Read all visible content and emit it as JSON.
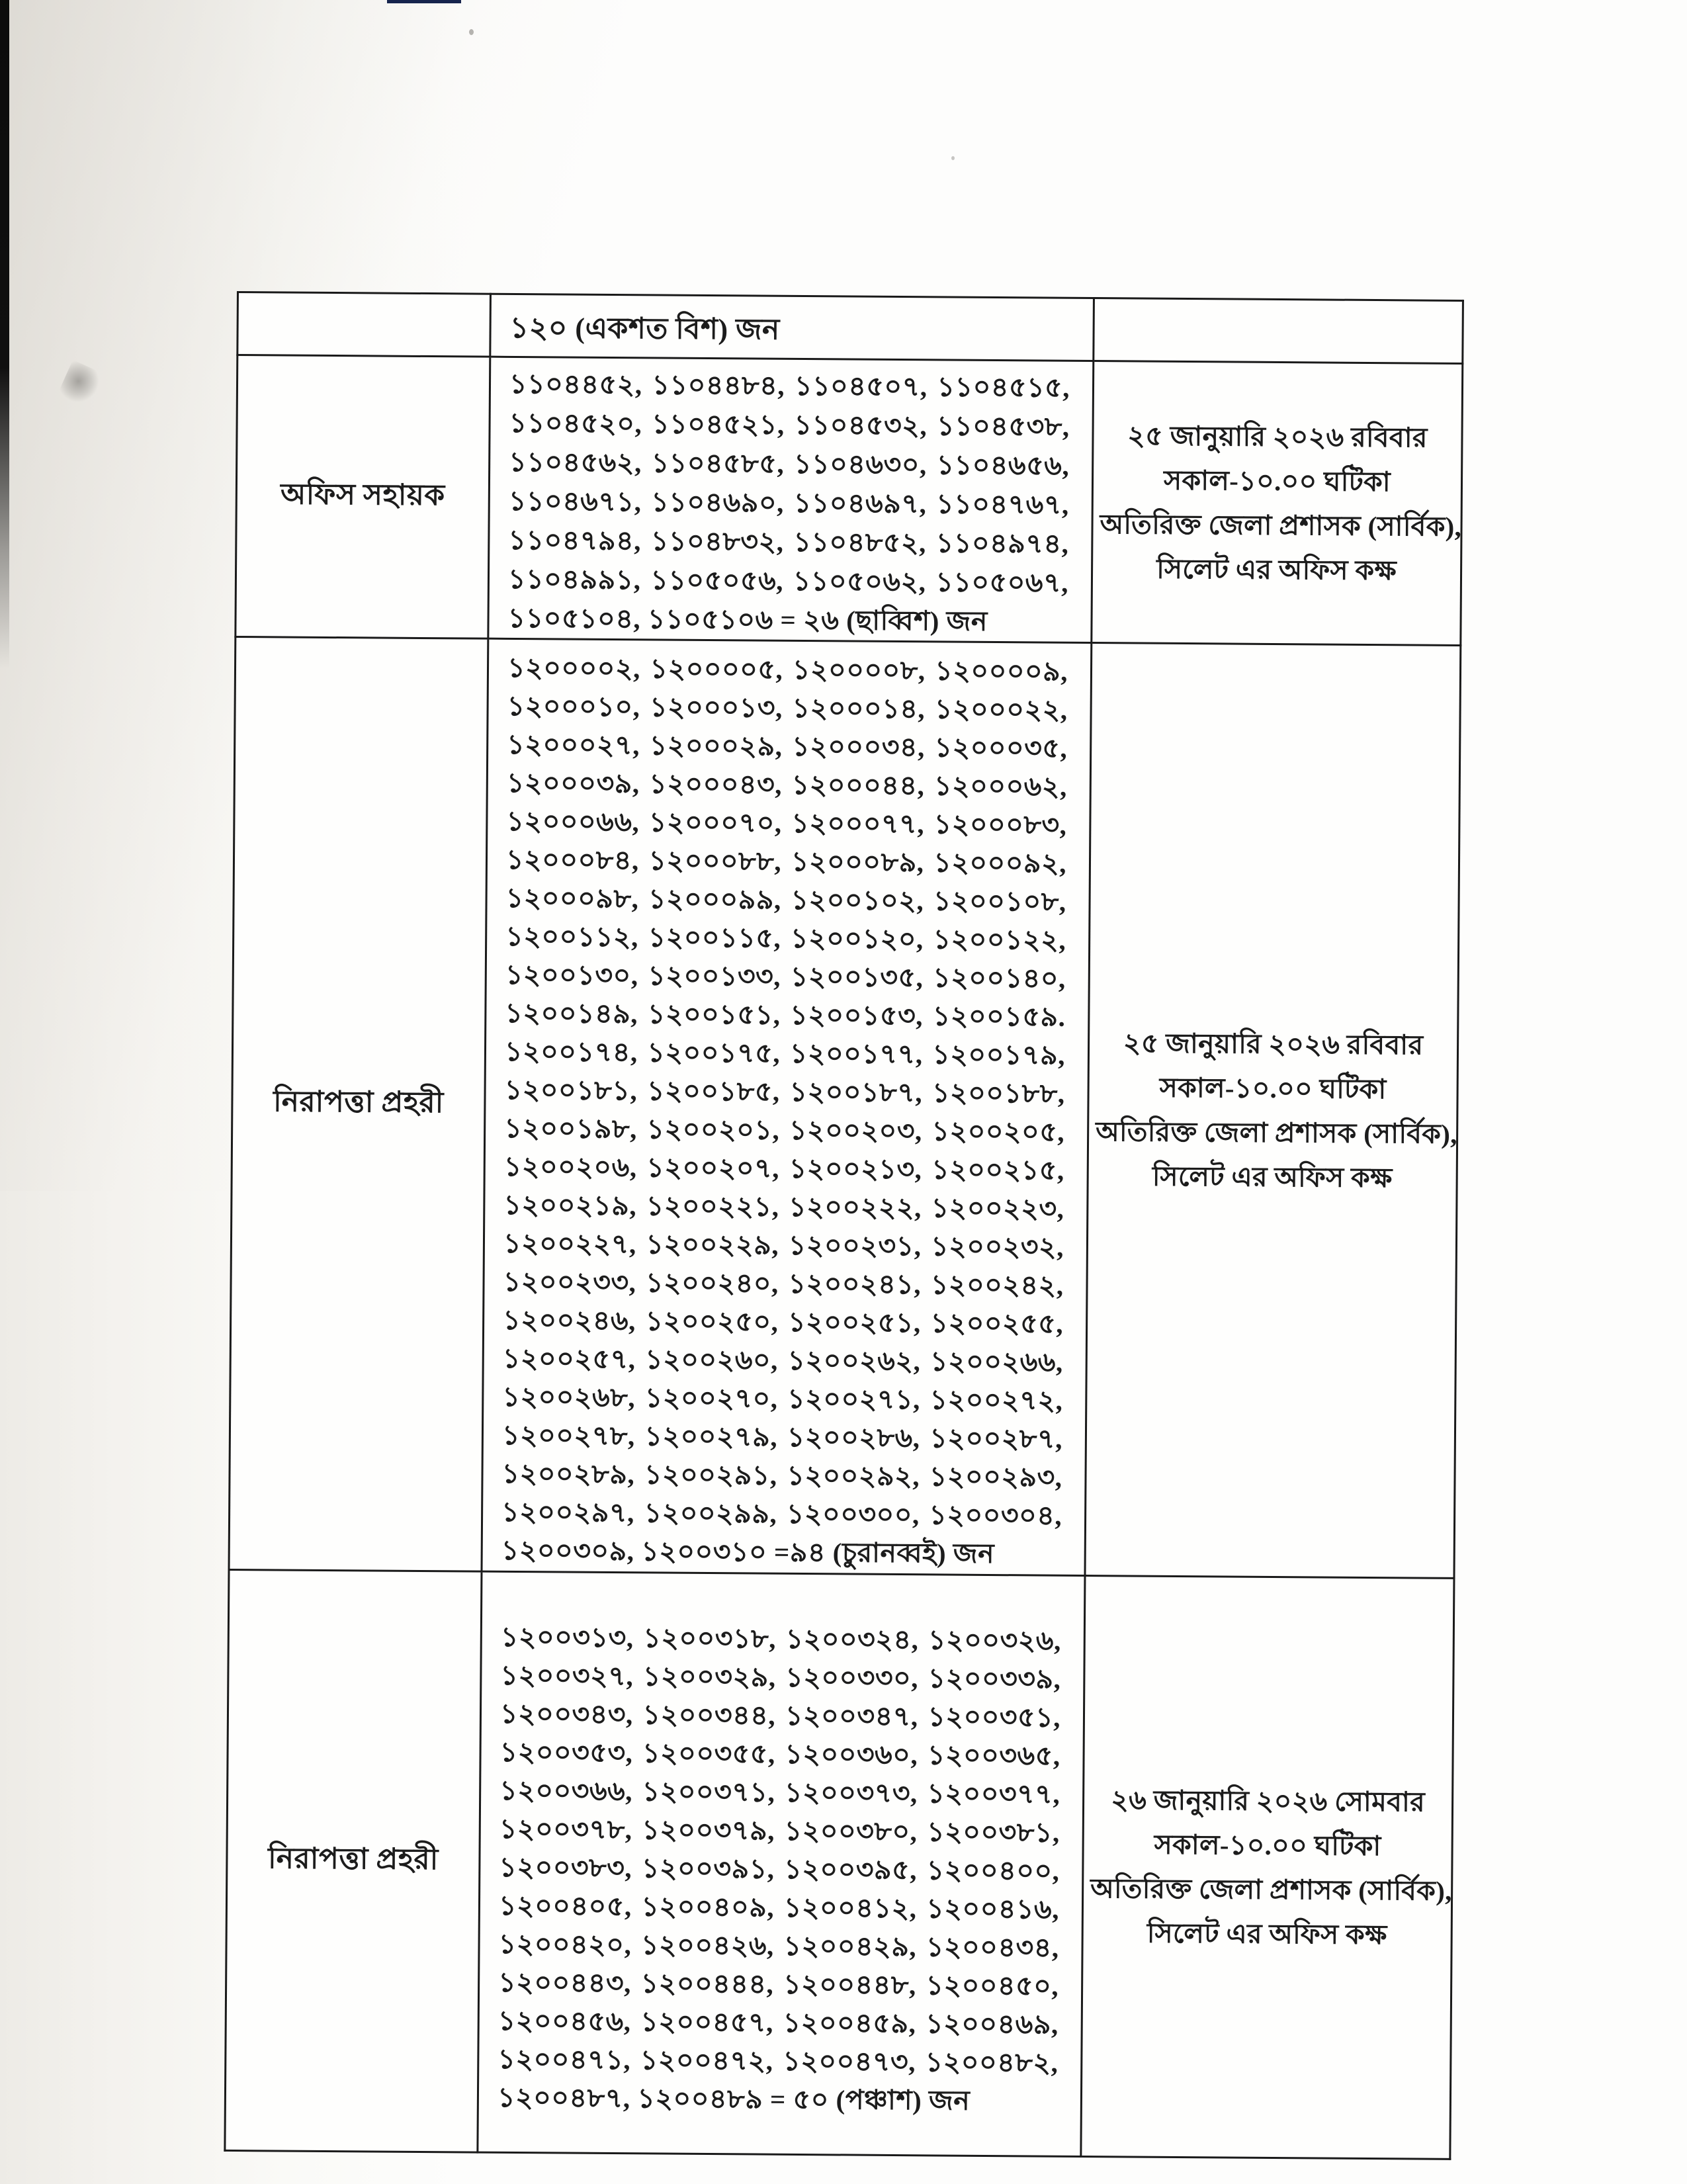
{
  "colors": {
    "paper": "#f8f6f2",
    "ink": "#1c1c1c",
    "border": "#1a1a1a"
  },
  "table": {
    "header_row": {
      "total_text": "১২০ (একশত বিশ) জন"
    },
    "rows": [
      {
        "post": "অফিস সহায়ক",
        "roll_lines": [
          "১১০৪৪৫২, ১১০৪৪৮৪, ১১০৪৫০৭, ১১০৪৫১৫,",
          "১১০৪৫২০, ১১০৪৫২১, ১১০৪৫৩২, ১১০৪৫৩৮,",
          "১১০৪৫৬২, ১১০৪৫৮৫, ১১০৪৬৩০, ১১০৪৬৫৬,",
          "১১০৪৬৭১, ১১০৪৬৯০, ১১০৪৬৯৭, ১১০৪৭৬৭,",
          "১১০৪৭৯৪, ১১০৪৮৩২, ১১০৪৮৫২, ১১০৪৯৭৪,",
          "১১০৪৯৯১, ১১০৫০৫৬, ১১০৫০৬২, ১১০৫০৬৭,",
          "১১০৫১০৪, ১১০৫১০৬ = ২৬ (ছাব্বিশ) জন"
        ],
        "schedule_lines": [
          "২৫ জানুয়ারি ২০২৬ রবিবার",
          "সকাল-১০.০০ ঘটিকা",
          "অতিরিক্ত জেলা প্রশাসক (সার্বিক),",
          "সিলেট এর অফিস কক্ষ"
        ]
      },
      {
        "post": "নিরাপত্তা প্রহরী",
        "roll_lines": [
          "১২০০০০২, ১২০০০০৫, ১২০০০০৮, ১২০০০০৯,",
          "১২০০০১০, ১২০০০১৩, ১২০০০১৪, ১২০০০২২,",
          "১২০০০২৭, ১২০০০২৯, ১২০০০৩৪, ১২০০০৩৫,",
          "১২০০০৩৯, ১২০০০৪৩, ১২০০০৪৪, ১২০০০৬২,",
          "১২০০০৬৬, ১২০০০৭০, ১২০০০৭৭, ১২০০০৮৩,",
          "১২০০০৮৪, ১২০০০৮৮, ১২০০০৮৯, ১২০০০৯২,",
          "১২০০০৯৮, ১২০০০৯৯, ১২০০১০২, ১২০০১০৮,",
          "১২০০১১২, ১২০০১১৫, ১২০০১২০, ১২০০১২২,",
          "১২০০১৩০, ১২০০১৩৩, ১২০০১৩৫, ১২০০১৪০,",
          "১২০০১৪৯, ১২০০১৫১, ১২০০১৫৩, ১২০০১৫৯.",
          "১২০০১৭৪, ১২০০১৭৫, ১২০০১৭৭, ১২০০১৭৯,",
          "১২০০১৮১, ১২০০১৮৫, ১২০০১৮৭, ১২০০১৮৮,",
          "১২০০১৯৮, ১২০০২০১, ১২০০২০৩, ১২০০২০৫,",
          "১২০০২০৬, ১২০০২০৭, ১২০০২১৩, ১২০০২১৫,",
          "১২০০২১৯, ১২০০২২১, ১২০০২২২, ১২০০২২৩,",
          "১২০০২২৭, ১২০০২২৯, ১২০০২৩১, ১২০০২৩২,",
          "১২০০২৩৩, ১২০০২৪০, ১২০০২৪১, ১২০০২৪২,",
          "১২০০২৪৬, ১২০০২৫০, ১২০০২৫১, ১২০০২৫৫,",
          "১২০০২৫৭, ১২০০২৬০, ১২০০২৬২, ১২০০২৬৬,",
          "১২০০২৬৮, ১২০০২৭০, ১২০০২৭১, ১২০০২৭২,",
          "১২০০২৭৮, ১২০০২৭৯, ১২০০২৮৬, ১২০০২৮৭,",
          "১২০০২৮৯, ১২০০২৯১, ১২০০২৯২, ১২০০২৯৩,",
          "১২০০২৯৭, ১২০০২৯৯, ১২০০৩০০, ১২০০৩০৪,",
          "১২০০৩০৯, ১২০০৩১০ =৯৪ (চুরানব্বই) জন"
        ],
        "schedule_lines": [
          "২৫ জানুয়ারি ২০২৬ রবিবার",
          "সকাল-১০.০০ ঘটিকা",
          "অতিরিক্ত জেলা প্রশাসক (সার্বিক),",
          "সিলেট এর অফিস কক্ষ"
        ]
      },
      {
        "post": "নিরাপত্তা প্রহরী",
        "roll_lines": [
          "১২০০৩১৩, ১২০০৩১৮, ১২০০৩২৪, ১২০০৩২৬,",
          "১২০০৩২৭, ১২০০৩২৯, ১২০০৩৩০, ১২০০৩৩৯,",
          "১২০০৩৪৩, ১২০০৩৪৪, ১২০০৩৪৭, ১২০০৩৫১,",
          "১২০০৩৫৩, ১২০০৩৫৫, ১২০০৩৬০, ১২০০৩৬৫,",
          "১২০০৩৬৬, ১২০০৩৭১, ১২০০৩৭৩, ১২০০৩৭৭,",
          "১২০০৩৭৮, ১২০০৩৭৯, ১২০০৩৮০, ১২০০৩৮১,",
          "১২০০৩৮৩, ১২০০৩৯১, ১২০০৩৯৫, ১২০০৪০০,",
          "১২০০৪০৫, ১২০০৪০৯, ১২০০৪১২, ১২০০৪১৬,",
          "১২০০৪২০, ১২০০৪২৬, ১২০০৪২৯, ১২০০৪৩৪,",
          "১২০০৪৪৩, ১২০০৪৪৪, ১২০০৪৪৮, ১২০০৪৫০,",
          "১২০০৪৫৬, ১২০০৪৫৭, ১২০০৪৫৯, ১২০০৪৬৯,",
          "১২০০৪৭১, ১২০০৪৭২, ১২০০৪৭৩, ১২০০৪৮২,",
          "১২০০৪৮৭, ১২০০৪৮৯ = ৫০ (পঞ্চাশ) জন"
        ],
        "schedule_lines": [
          "২৬ জানুয়ারি ২০২৬ সোমবার",
          "সকাল-১০.০০ ঘটিকা",
          "অতিরিক্ত জেলা প্রশাসক (সার্বিক),",
          "সিলেট এর অফিস কক্ষ"
        ]
      }
    ]
  }
}
